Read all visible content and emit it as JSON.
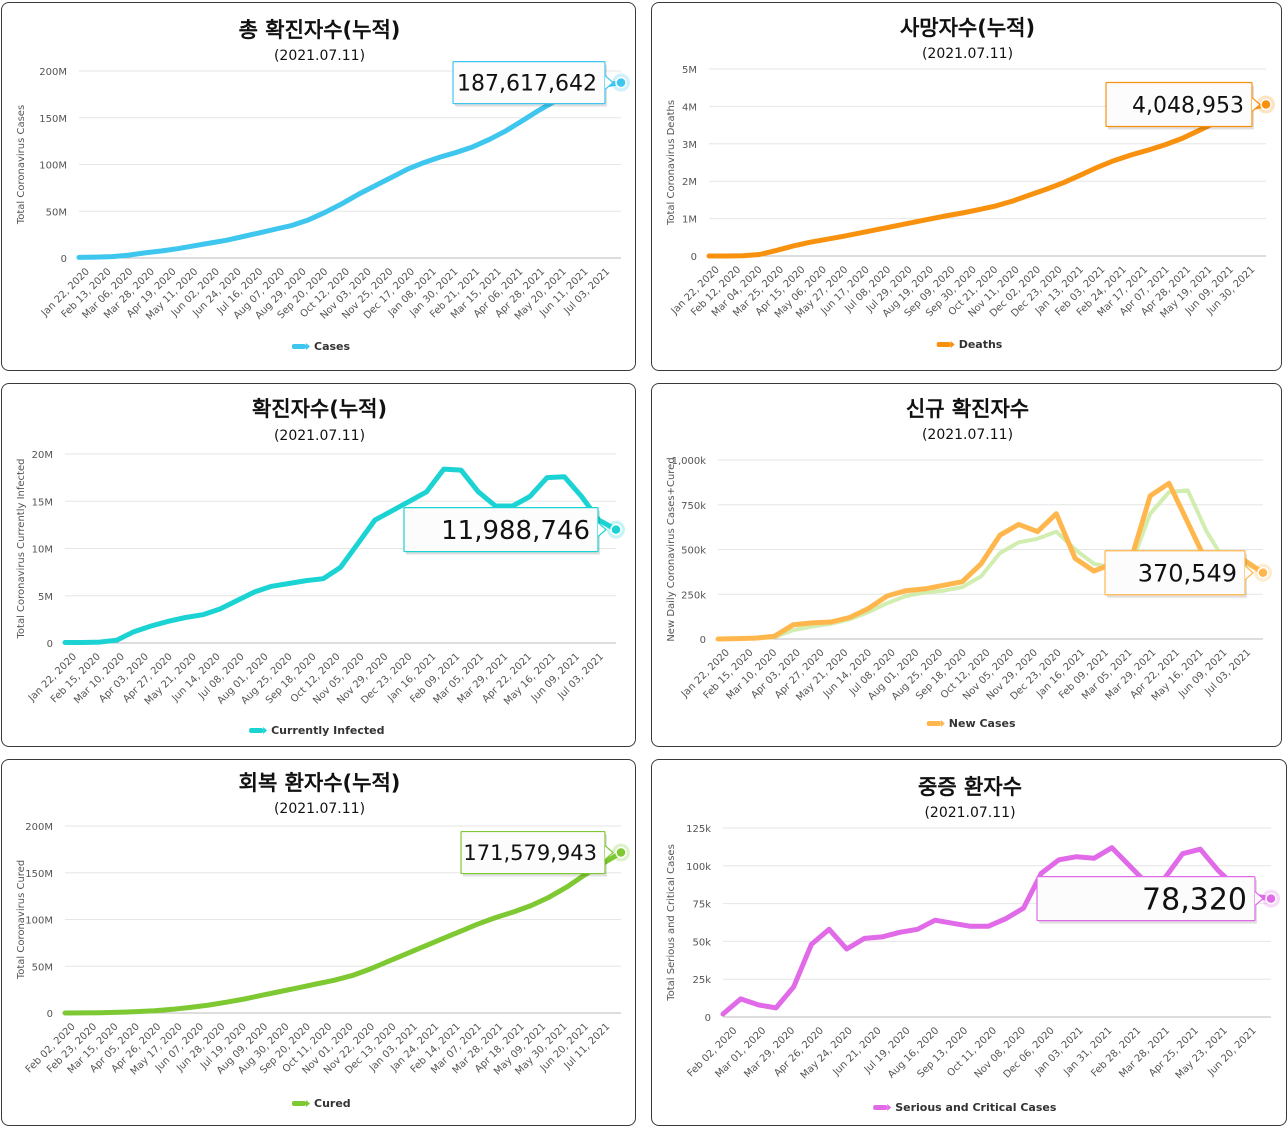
{
  "chart_data": [
    {
      "id": "total-cases",
      "type": "line",
      "title": "총 확진자수(누적)",
      "subtitle": "(2021.07.11)",
      "ylabel": "Total Coronavirus Cases",
      "xlabel": "",
      "ylim": [
        0,
        200000000
      ],
      "yticks": [
        "0",
        "50M",
        "100M",
        "150M",
        "200M"
      ],
      "ytick_values": [
        0,
        50000000,
        100000000,
        150000000,
        200000000
      ],
      "xticks": [
        "Jan 22, 2020",
        "Feb 13, 2020",
        "Mar 06, 2020",
        "Mar 28, 2020",
        "Apr 19, 2020",
        "May 11, 2020",
        "Jun 02, 2020",
        "Jun 24, 2020",
        "Jul 16, 2020",
        "Aug 07, 2020",
        "Aug 29, 2020",
        "Sep 20, 2020",
        "Oct 12, 2020",
        "Nov 03, 2020",
        "Nov 25, 2020",
        "Dec 17, 2020",
        "Jan 08, 2021",
        "Jan 30, 2021",
        "Feb 21, 2021",
        "Mar 15, 2021",
        "Apr 06, 2021",
        "Apr 28, 2021",
        "May 20, 2021",
        "Jun 11, 2021",
        "Jul 03, 2021"
      ],
      "series": [
        {
          "name": "Cases",
          "color": "#3ec6ee",
          "values": [
            0.6,
            1,
            1.5,
            3,
            5.5,
            7.5,
            10,
            13,
            16,
            19,
            23,
            27,
            31,
            35,
            41,
            49,
            58,
            68,
            77,
            86,
            95,
            102,
            108,
            113,
            119,
            127,
            136,
            147,
            158,
            168,
            176,
            181,
            185,
            187.6
          ],
          "value_scale": 1000000
        }
      ],
      "grid": true,
      "legend": "bottom",
      "tooltip": {
        "value": "187,617,642"
      }
    },
    {
      "id": "deaths",
      "type": "line",
      "title": "사망자수(누적)",
      "subtitle": "(2021.07.11)",
      "ylabel": "Total Coronavirus Deaths",
      "xlabel": "",
      "ylim": [
        0,
        5000000
      ],
      "yticks": [
        "0",
        "1M",
        "2M",
        "3M",
        "4M",
        "5M"
      ],
      "ytick_values": [
        0,
        1000000,
        2000000,
        3000000,
        4000000,
        5000000
      ],
      "xticks": [
        "Jan 22, 2020",
        "Feb 12, 2020",
        "Mar 04, 2020",
        "Mar 25, 2020",
        "Apr 15, 2020",
        "May 06, 2020",
        "May 27, 2020",
        "Jun 17, 2020",
        "Jul 08, 2020",
        "Jul 29, 2020",
        "Aug 19, 2020",
        "Sep 09, 2020",
        "Sep 30, 2020",
        "Oct 21, 2020",
        "Nov 11, 2020",
        "Dec 02, 2020",
        "Dec 23, 2020",
        "Jan 13, 2021",
        "Feb 03, 2021",
        "Feb 24, 2021",
        "Mar 17, 2021",
        "Apr 07, 2021",
        "Apr 28, 2021",
        "May 19, 2021",
        "Jun 09, 2021",
        "Jun 30, 2021"
      ],
      "series": [
        {
          "name": "Deaths",
          "color": "#f8920e",
          "values": [
            0,
            0,
            0.005,
            0.04,
            0.15,
            0.27,
            0.37,
            0.45,
            0.53,
            0.62,
            0.71,
            0.8,
            0.89,
            0.98,
            1.07,
            1.15,
            1.24,
            1.34,
            1.47,
            1.63,
            1.79,
            1.96,
            2.16,
            2.37,
            2.55,
            2.7,
            2.83,
            2.97,
            3.14,
            3.35,
            3.57,
            3.79,
            3.94,
            4.05
          ],
          "value_scale": 1000000
        }
      ],
      "grid": true,
      "legend": "bottom",
      "tooltip": {
        "value": "4,048,953"
      }
    },
    {
      "id": "currently-infected",
      "type": "line",
      "title": "확진자수(누적)",
      "subtitle": "(2021.07.11)",
      "ylabel": "Total Coronavirus Currently Infected",
      "xlabel": "",
      "ylim": [
        0,
        20000000
      ],
      "yticks": [
        "0",
        "5M",
        "10M",
        "15M",
        "20M"
      ],
      "ytick_values": [
        0,
        5000000,
        10000000,
        15000000,
        20000000
      ],
      "xticks": [
        "Jan 22, 2020",
        "Feb 15, 2020",
        "Mar 10, 2020",
        "Apr 03, 2020",
        "Apr 27, 2020",
        "May 21, 2020",
        "Jun 14, 2020",
        "Jul 08, 2020",
        "Aug 01, 2020",
        "Aug 25, 2020",
        "Sep 18, 2020",
        "Oct 12, 2020",
        "Nov 05, 2020",
        "Nov 29, 2020",
        "Dec 23, 2020",
        "Jan 16, 2021",
        "Feb 09, 2021",
        "Mar 05, 2021",
        "Mar 29, 2021",
        "Apr 22, 2021",
        "May 16, 2021",
        "Jun 09, 2021",
        "Jul 03, 2021"
      ],
      "series": [
        {
          "name": "Currently Infected",
          "color": "#1cd3d3",
          "values": [
            0.05,
            0.05,
            0.1,
            0.3,
            1.2,
            1.8,
            2.3,
            2.7,
            3.0,
            3.6,
            4.5,
            5.4,
            6.0,
            6.3,
            6.6,
            6.8,
            8.0,
            10.5,
            13.0,
            14.0,
            15.0,
            16.0,
            18.4,
            18.3,
            16.0,
            14.5,
            14.5,
            15.5,
            17.5,
            17.6,
            15.5,
            13.0,
            12.0
          ],
          "value_scale": 1000000
        }
      ],
      "grid": true,
      "legend": "bottom",
      "tooltip": {
        "value": "11,988,746"
      }
    },
    {
      "id": "new-cases",
      "type": "line",
      "title": "신규 확진자수",
      "subtitle": "(2021.07.11)",
      "ylabel": "New Daily Coronavirus Cases+Cured",
      "xlabel": "",
      "ylim": [
        0,
        1000000
      ],
      "yticks": [
        "0",
        "250k",
        "500k",
        "750k",
        "1,000k"
      ],
      "ytick_values": [
        0,
        250000,
        500000,
        750000,
        1000000
      ],
      "xticks": [
        "Jan 22, 2020",
        "Feb 15, 2020",
        "Mar 10, 2020",
        "Apr 03, 2020",
        "Apr 27, 2020",
        "May 21, 2020",
        "Jun 14, 2020",
        "Jul 08, 2020",
        "Aug 01, 2020",
        "Aug 25, 2020",
        "Sep 18, 2020",
        "Oct 12, 2020",
        "Nov 05, 2020",
        "Nov 29, 2020",
        "Dec 23, 2020",
        "Jan 16, 2021",
        "Feb 09, 2021",
        "Mar 05, 2021",
        "Mar 29, 2021",
        "Apr 22, 2021",
        "May 16, 2021",
        "Jun 09, 2021",
        "Jul 03, 2021"
      ],
      "series": [
        {
          "name": "New Cases",
          "color": "#ffb74d",
          "values": [
            0,
            2,
            5,
            15,
            80,
            90,
            95,
            120,
            170,
            240,
            270,
            280,
            300,
            320,
            420,
            580,
            640,
            600,
            700,
            450,
            380,
            420,
            450,
            800,
            870,
            650,
            430,
            380,
            440,
            370
          ],
          "value_scale": 1000
        },
        {
          "name": "",
          "color": "#c5e89c",
          "values": [
            0,
            1,
            3,
            10,
            50,
            70,
            85,
            110,
            150,
            200,
            240,
            260,
            270,
            290,
            350,
            480,
            540,
            560,
            600,
            500,
            420,
            400,
            420,
            700,
            820,
            830,
            600,
            430,
            420,
            380
          ],
          "value_scale": 1000
        }
      ],
      "grid": true,
      "legend": "bottom",
      "tooltip": {
        "value": "370,549"
      }
    },
    {
      "id": "cured",
      "type": "line",
      "title": "회복 환자수(누적)",
      "subtitle": "(2021.07.11)",
      "ylabel": "Total Coronavirus Cured",
      "xlabel": "",
      "ylim": [
        0,
        200000000
      ],
      "yticks": [
        "0",
        "50M",
        "100M",
        "150M",
        "200M"
      ],
      "ytick_values": [
        0,
        50000000,
        100000000,
        150000000,
        200000000
      ],
      "xticks": [
        "Feb 02, 2020",
        "Feb 23, 2020",
        "Mar 15, 2020",
        "Apr 05, 2020",
        "Apr 26, 2020",
        "May 17, 2020",
        "Jun 07, 2020",
        "Jun 28, 2020",
        "Jul 19, 2020",
        "Aug 09, 2020",
        "Aug 30, 2020",
        "Sep 20, 2020",
        "Oct 11, 2020",
        "Nov 01, 2020",
        "Nov 22, 2020",
        "Dec 13, 2020",
        "Jan 03, 2021",
        "Jan 24, 2021",
        "Feb 14, 2021",
        "Mar 07, 2021",
        "Mar 28, 2021",
        "Apr 18, 2021",
        "May 09, 2021",
        "May 30, 2021",
        "Jun 20, 2021",
        "Jul 11, 2021"
      ],
      "series": [
        {
          "name": "Cured",
          "color": "#7ec832",
          "values": [
            0.02,
            0.1,
            0.3,
            0.8,
            1.5,
            2.5,
            4,
            6,
            8.5,
            11.5,
            15,
            19,
            23,
            27,
            31,
            35,
            40,
            47,
            55,
            63,
            71,
            79,
            87,
            95,
            102,
            108,
            115,
            124,
            135,
            148,
            160,
            171.6
          ],
          "value_scale": 1000000
        }
      ],
      "grid": true,
      "legend": "bottom",
      "tooltip": {
        "value": "171,579,943"
      }
    },
    {
      "id": "serious-critical",
      "type": "line",
      "title": "중증 환자수",
      "subtitle": "(2021.07.11)",
      "ylabel": "Total Serious and Critical Cases",
      "xlabel": "",
      "ylim": [
        0,
        125000
      ],
      "yticks": [
        "0",
        "25k",
        "50k",
        "75k",
        "100k",
        "125k"
      ],
      "ytick_values": [
        0,
        25000,
        50000,
        75000,
        100000,
        125000
      ],
      "xticks": [
        "Feb 02, 2020",
        "Mar 01, 2020",
        "Mar 29, 2020",
        "Apr 26, 2020",
        "May 24, 2020",
        "Jun 21, 2020",
        "Jul 19, 2020",
        "Aug 16, 2020",
        "Sep 13, 2020",
        "Oct 11, 2020",
        "Nov 08, 2020",
        "Dec 06, 2020",
        "Jan 03, 2021",
        "Jan 31, 2021",
        "Feb 28, 2021",
        "Mar 28, 2021",
        "Apr 25, 2021",
        "May 23, 2021",
        "Jun 20, 2021"
      ],
      "series": [
        {
          "name": "Serious and Critical Cases",
          "color": "#e06ae8",
          "values": [
            2,
            12,
            8,
            6,
            20,
            48,
            58,
            45,
            52,
            53,
            56,
            58,
            64,
            62,
            60,
            60,
            65,
            72,
            95,
            104,
            106,
            105,
            112,
            100,
            88,
            92,
            108,
            111,
            97,
            86,
            80,
            78.3
          ],
          "value_scale": 1000
        }
      ],
      "grid": true,
      "legend": "bottom",
      "tooltip": {
        "value": "78,320"
      }
    }
  ]
}
